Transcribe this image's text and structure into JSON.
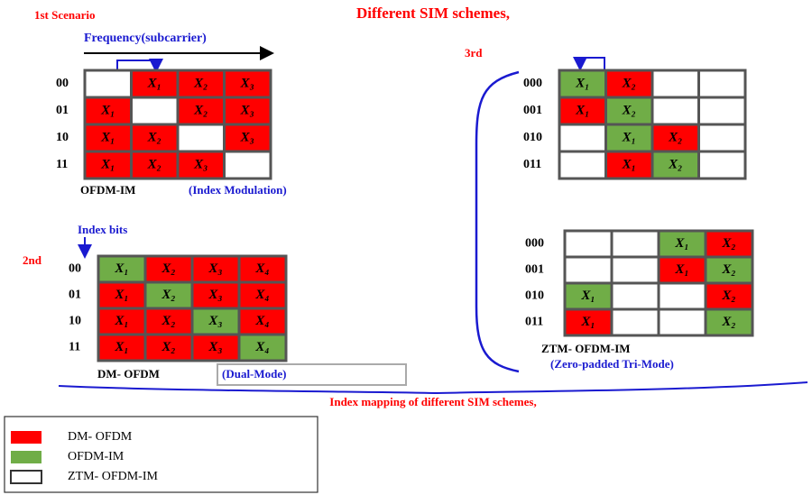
{
  "title": "Different  SIM schemes,",
  "scenario1": {
    "label": "1st  Scenario",
    "axis": "Frequency(subcarrier)",
    "name": "OFDM-IM",
    "description": "(Index Modulation)",
    "rows": [
      {
        "label": "00",
        "cells": [
          {
            "fill": "white"
          },
          {
            "fill": "red",
            "text": "X₁"
          },
          {
            "fill": "red",
            "text": "X₂"
          },
          {
            "fill": "red",
            "text": "X₃"
          }
        ]
      },
      {
        "label": "01",
        "cells": [
          {
            "fill": "red",
            "text": "X₁"
          },
          {
            "fill": "white"
          },
          {
            "fill": "red",
            "text": "X₂"
          },
          {
            "fill": "red",
            "text": "X₃"
          }
        ]
      },
      {
        "label": "10",
        "cells": [
          {
            "fill": "red",
            "text": "X₁"
          },
          {
            "fill": "red",
            "text": "X₂"
          },
          {
            "fill": "white"
          },
          {
            "fill": "red",
            "text": "X₃"
          }
        ]
      },
      {
        "label": "11",
        "cells": [
          {
            "fill": "red",
            "text": "X₁"
          },
          {
            "fill": "red",
            "text": "X₂"
          },
          {
            "fill": "red",
            "text": "X₃"
          },
          {
            "fill": "white"
          }
        ]
      }
    ]
  },
  "scenario2": {
    "label": "2nd",
    "axis": "Index bits",
    "name": "DM- OFDM",
    "description": "(Dual-Mode)",
    "rows": [
      {
        "label": "00",
        "cells": [
          {
            "fill": "green",
            "text": "X₁"
          },
          {
            "fill": "red",
            "text": "X₂"
          },
          {
            "fill": "red",
            "text": "X₃"
          },
          {
            "fill": "red",
            "text": "X₄"
          }
        ]
      },
      {
        "label": "01",
        "cells": [
          {
            "fill": "red",
            "text": "X₁"
          },
          {
            "fill": "green",
            "text": "X₂"
          },
          {
            "fill": "red",
            "text": "X₃"
          },
          {
            "fill": "red",
            "text": "X₄"
          }
        ]
      },
      {
        "label": "10",
        "cells": [
          {
            "fill": "red",
            "text": "X₁"
          },
          {
            "fill": "red",
            "text": "X₂"
          },
          {
            "fill": "green",
            "text": "X₃"
          },
          {
            "fill": "red",
            "text": "X₄"
          }
        ]
      },
      {
        "label": "11",
        "cells": [
          {
            "fill": "red",
            "text": "X₁"
          },
          {
            "fill": "red",
            "text": "X₂"
          },
          {
            "fill": "red",
            "text": "X₃"
          },
          {
            "fill": "green",
            "text": "X₄"
          }
        ]
      }
    ]
  },
  "scenario3": {
    "label": "3rd",
    "name": "ZTM- OFDM-IM",
    "description": "(Zero-padded Tri-Mode)",
    "top_rows": [
      {
        "label": "000",
        "cells": [
          {
            "fill": "green",
            "text": "X₁"
          },
          {
            "fill": "red",
            "text": "X₂"
          },
          {
            "fill": "white"
          },
          {
            "fill": "white"
          }
        ]
      },
      {
        "label": "001",
        "cells": [
          {
            "fill": "red",
            "text": "X₁"
          },
          {
            "fill": "green",
            "text": "X₂"
          },
          {
            "fill": "white"
          },
          {
            "fill": "white"
          }
        ]
      },
      {
        "label": "010",
        "cells": [
          {
            "fill": "white"
          },
          {
            "fill": "green",
            "text": "X₁"
          },
          {
            "fill": "red",
            "text": "X₂"
          },
          {
            "fill": "white"
          }
        ]
      },
      {
        "label": "011",
        "cells": [
          {
            "fill": "white"
          },
          {
            "fill": "red",
            "text": "X₁"
          },
          {
            "fill": "green",
            "text": "X₂"
          },
          {
            "fill": "white"
          }
        ]
      }
    ],
    "bottom_rows": [
      {
        "label": "000",
        "cells": [
          {
            "fill": "white"
          },
          {
            "fill": "white"
          },
          {
            "fill": "green",
            "text": "X₁"
          },
          {
            "fill": "red",
            "text": "X₂"
          }
        ]
      },
      {
        "label": "001",
        "cells": [
          {
            "fill": "white"
          },
          {
            "fill": "white"
          },
          {
            "fill": "red",
            "text": "X₁"
          },
          {
            "fill": "green",
            "text": "X₂"
          }
        ]
      },
      {
        "label": "010",
        "cells": [
          {
            "fill": "green",
            "text": "X₁"
          },
          {
            "fill": "white"
          },
          {
            "fill": "white"
          },
          {
            "fill": "red",
            "text": "X₂"
          }
        ]
      },
      {
        "label": "011",
        "cells": [
          {
            "fill": "red",
            "text": "X₁"
          },
          {
            "fill": "white"
          },
          {
            "fill": "white"
          },
          {
            "fill": "green",
            "text": "X₂"
          }
        ]
      }
    ]
  },
  "caption": "Index mapping of different  SIM schemes,",
  "legend": [
    {
      "label": "DM- OFDM",
      "fill": "red"
    },
    {
      "label": "OFDM-IM",
      "fill": "green"
    },
    {
      "label": "ZTM- OFDM-IM",
      "fill": "white"
    }
  ]
}
